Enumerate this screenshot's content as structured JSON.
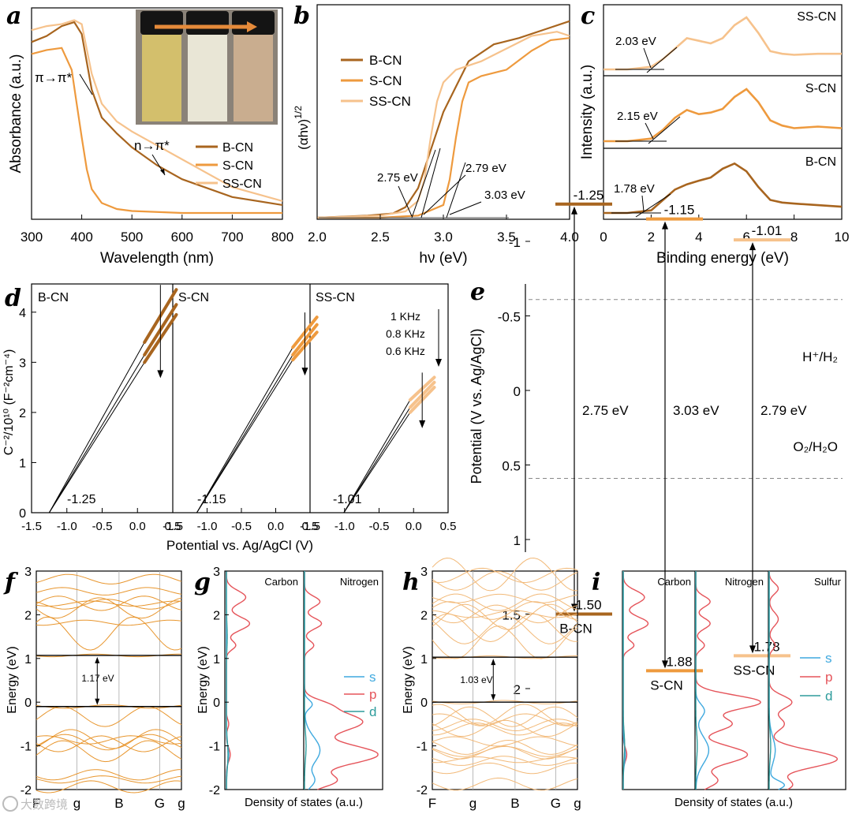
{
  "colors": {
    "b": "#A8651F",
    "s": "#EE9A3E",
    "ss": "#F6C28C",
    "orange": "#E8962E",
    "lightorange": "#F2B978",
    "s_orb": "#3FA9DF",
    "p_orb": "#E5545A",
    "d_orb": "#2E9C9C",
    "grid": "#999999"
  },
  "panels": {
    "a": {
      "letter": "a",
      "xlabel": "Wavelength (nm)",
      "ylabel": "Absorbance (a.u.)",
      "pipi": "π→π*",
      "npi": "n→π*",
      "legend": [
        "B-CN",
        "S-CN",
        "SS-CN"
      ]
    },
    "b": {
      "letter": "b",
      "xlabel": "hν (eV)",
      "ylabel": "(αhν)",
      "ylabel_sup": "1/2",
      "legend": [
        "B-CN",
        "S-CN",
        "SS-CN"
      ],
      "ann1": "2.75 eV",
      "ann2": "2.79 eV",
      "ann3": "3.03 eV"
    },
    "c": {
      "letter": "c",
      "xlabel": "Binding energy (eV)",
      "ylabel": "Intensity (a.u.)",
      "names": [
        "SS-CN",
        "S-CN",
        "B-CN"
      ],
      "gaps": [
        "2.03 eV",
        "2.15 eV",
        "1.78 eV"
      ]
    },
    "d": {
      "letter": "d",
      "xlabel": "Potential vs. Ag/AgCl (V)",
      "ylabel": "C⁻²/10¹⁰ (F⁻²cm⁻⁴)",
      "names": [
        "B-CN",
        "S-CN",
        "SS-CN"
      ],
      "intercepts": [
        "-1.25",
        "-1.15",
        "-1.01"
      ],
      "freqs": [
        "1 KHz",
        "0.8 KHz",
        "0.6 KHz"
      ]
    },
    "e": {
      "letter": "e",
      "ylabel": "Potential (V vs. Ag/AgCl)",
      "h2": "H⁺/H₂",
      "o2": "O₂/H₂O",
      "cb": [
        "-1.25",
        "-1.15",
        "-1.01"
      ],
      "vb": [
        "1.50",
        "1.88",
        "1.78"
      ],
      "gaps": [
        "2.75 eV",
        "3.03 eV",
        "2.79 eV"
      ],
      "names": [
        "B-CN",
        "S-CN",
        "SS-CN"
      ]
    },
    "f": {
      "letter": "f",
      "ylabel": "Energy (eV)",
      "gap": "1.17 eV"
    },
    "g": {
      "letter": "g",
      "xlabel": "Density of states (a.u.)",
      "ylabel": "Energy (eV)",
      "cols": [
        "Carbon",
        "Nitrogen"
      ],
      "legend": [
        "s",
        "p",
        "d"
      ]
    },
    "h": {
      "letter": "h",
      "ylabel": "Energy (eV)",
      "gap": "1.03 eV"
    },
    "i": {
      "letter": "i",
      "xlabel": "Density of states (a.u.)",
      "cols": [
        "Carbon",
        "Nitrogen",
        "Sulfur"
      ],
      "legend": [
        "s",
        "p",
        "d"
      ]
    }
  },
  "watermark": "大数跨境",
  "chart_data": [
    {
      "id": "a",
      "type": "line",
      "xlim": [
        300,
        800
      ],
      "xticks": [
        "300",
        "400",
        "500",
        "600",
        "700",
        "800"
      ],
      "series": [
        {
          "name": "B-CN",
          "x": [
            300,
            330,
            360,
            385,
            400,
            420,
            440,
            470,
            500,
            550,
            600,
            700,
            800
          ],
          "y": [
            0.86,
            0.89,
            0.94,
            0.96,
            0.9,
            0.62,
            0.48,
            0.4,
            0.33,
            0.24,
            0.17,
            0.08,
            0.04
          ]
        },
        {
          "name": "S-CN",
          "x": [
            300,
            330,
            360,
            380,
            390,
            400,
            410,
            420,
            440,
            470,
            500,
            600,
            800
          ],
          "y": [
            0.8,
            0.82,
            0.83,
            0.72,
            0.55,
            0.38,
            0.22,
            0.12,
            0.05,
            0.02,
            0.01,
            0.0,
            0.0
          ]
        },
        {
          "name": "SS-CN",
          "x": [
            300,
            330,
            360,
            385,
            400,
            420,
            440,
            470,
            500,
            550,
            600,
            700,
            800
          ],
          "y": [
            0.92,
            0.94,
            0.95,
            0.97,
            0.95,
            0.7,
            0.55,
            0.46,
            0.41,
            0.34,
            0.27,
            0.13,
            0.06
          ]
        }
      ]
    },
    {
      "id": "b",
      "type": "line",
      "xlim": [
        2.0,
        4.0
      ],
      "xticks": [
        "2.0",
        "2.5",
        "3.0",
        "3.5",
        "4.0"
      ],
      "series": [
        {
          "name": "B-CN",
          "x": [
            2.0,
            2.4,
            2.6,
            2.7,
            2.8,
            2.9,
            3.0,
            3.1,
            3.2,
            3.4,
            3.6,
            3.8,
            4.0
          ],
          "y": [
            0.0,
            0.01,
            0.02,
            0.05,
            0.14,
            0.32,
            0.5,
            0.62,
            0.74,
            0.82,
            0.85,
            0.89,
            0.93
          ]
        },
        {
          "name": "S-CN",
          "x": [
            2.0,
            2.5,
            2.8,
            3.0,
            3.05,
            3.1,
            3.15,
            3.2,
            3.3,
            3.5,
            3.7,
            3.85,
            4.0
          ],
          "y": [
            0.0,
            0.0,
            0.01,
            0.06,
            0.18,
            0.38,
            0.55,
            0.64,
            0.67,
            0.7,
            0.79,
            0.84,
            0.85
          ]
        },
        {
          "name": "SS-CN",
          "x": [
            2.0,
            2.5,
            2.7,
            2.8,
            2.85,
            2.9,
            2.95,
            3.0,
            3.1,
            3.3,
            3.5,
            3.7,
            3.9,
            4.0
          ],
          "y": [
            0.0,
            0.01,
            0.03,
            0.08,
            0.18,
            0.38,
            0.55,
            0.64,
            0.7,
            0.74,
            0.8,
            0.86,
            0.88,
            0.86
          ]
        }
      ]
    },
    {
      "id": "c",
      "type": "line",
      "xlim": [
        0,
        10
      ],
      "xticks": [
        "0",
        "2",
        "4",
        "6",
        "8",
        "10"
      ],
      "series": [
        {
          "name": "SS-CN",
          "x": [
            0,
            1,
            2,
            2.5,
            3,
            3.5,
            4,
            4.5,
            5,
            5.5,
            6,
            6.5,
            7,
            7.5,
            8,
            9,
            10
          ],
          "y": [
            0.0,
            0.0,
            0.05,
            0.2,
            0.4,
            0.6,
            0.55,
            0.5,
            0.6,
            0.85,
            1.0,
            0.7,
            0.35,
            0.3,
            0.28,
            0.3,
            0.3
          ]
        },
        {
          "name": "S-CN",
          "x": [
            0,
            1,
            2,
            2.5,
            3,
            3.5,
            4,
            4.5,
            5,
            5.5,
            6,
            6.5,
            7,
            7.5,
            8,
            9,
            10
          ],
          "y": [
            0.0,
            0.0,
            0.05,
            0.22,
            0.45,
            0.6,
            0.52,
            0.55,
            0.62,
            0.85,
            1.0,
            0.75,
            0.4,
            0.3,
            0.25,
            0.28,
            0.25
          ]
        },
        {
          "name": "B-CN",
          "x": [
            0,
            1,
            2,
            2.5,
            3,
            3.5,
            4,
            4.5,
            5,
            5.5,
            6,
            6.5,
            7,
            7.5,
            8,
            9,
            10
          ],
          "y": [
            0.0,
            0.0,
            0.05,
            0.25,
            0.45,
            0.55,
            0.62,
            0.68,
            0.85,
            0.95,
            0.8,
            0.5,
            0.25,
            0.2,
            0.18,
            0.15,
            0.12
          ]
        }
      ]
    },
    {
      "id": "d",
      "type": "line",
      "ylim": [
        0,
        4.5
      ],
      "yticks": [
        "0",
        "1",
        "2",
        "3",
        "4"
      ],
      "xticks": [
        "-1.5",
        "-1.0",
        "-0.5",
        "0.0",
        "0.5"
      ],
      "series": [
        {
          "name": "B-CN",
          "intercept": -1.25,
          "x": [
            0.1,
            0.55
          ],
          "y": [
            [
              3.4,
              4.45
            ],
            [
              3.15,
              4.15
            ],
            [
              3.0,
              3.95
            ]
          ]
        },
        {
          "name": "S-CN",
          "intercept": -1.15,
          "x": [
            0.25,
            0.6
          ],
          "y": [
            [
              3.3,
              3.9
            ],
            [
              3.15,
              3.75
            ],
            [
              3.05,
              3.6
            ]
          ]
        },
        {
          "name": "SS-CN",
          "intercept": -1.01,
          "x": [
            -0.05,
            0.3
          ],
          "y": [
            [
              2.25,
              2.7
            ],
            [
              2.1,
              2.6
            ],
            [
              2.0,
              2.5
            ]
          ]
        }
      ]
    },
    {
      "id": "e",
      "type": "bar",
      "categories": [
        "B-CN",
        "S-CN",
        "SS-CN"
      ],
      "cb": [
        -1.25,
        -1.15,
        -1.01
      ],
      "vb": [
        1.5,
        1.88,
        1.78
      ],
      "gap": [
        2.75,
        3.03,
        2.79
      ],
      "h2": -0.61,
      "o2": 0.59,
      "ylim": [
        -1.5,
        2.0
      ],
      "yticks": [
        "-1",
        "-0.5",
        "0",
        "0.5",
        "1",
        "1.5",
        "2"
      ]
    },
    {
      "id": "f",
      "type": "line",
      "ylim": [
        -2,
        3
      ],
      "yticks": [
        "-2",
        "-1",
        "0",
        "1",
        "2",
        "3"
      ],
      "xticks": [
        "F",
        "g",
        "B",
        "G",
        "g"
      ],
      "vbm": -0.1,
      "cbm": 1.07
    },
    {
      "id": "g",
      "type": "line",
      "ylim": [
        -2,
        3
      ],
      "yticks": [
        "-2",
        "-1",
        "0",
        "1",
        "2",
        "3"
      ]
    },
    {
      "id": "h",
      "type": "line",
      "ylim": [
        -2,
        3
      ],
      "yticks": [
        "-2",
        "-1",
        "0",
        "1",
        "2",
        "3"
      ],
      "xticks": [
        "F",
        "g",
        "B",
        "G",
        "g"
      ],
      "vbm": 0.0,
      "cbm": 1.03
    },
    {
      "id": "i",
      "type": "line",
      "ylim": [
        -2,
        3
      ],
      "yticks": [
        "-2",
        "-1",
        "0",
        "1",
        "2",
        "3"
      ]
    }
  ]
}
